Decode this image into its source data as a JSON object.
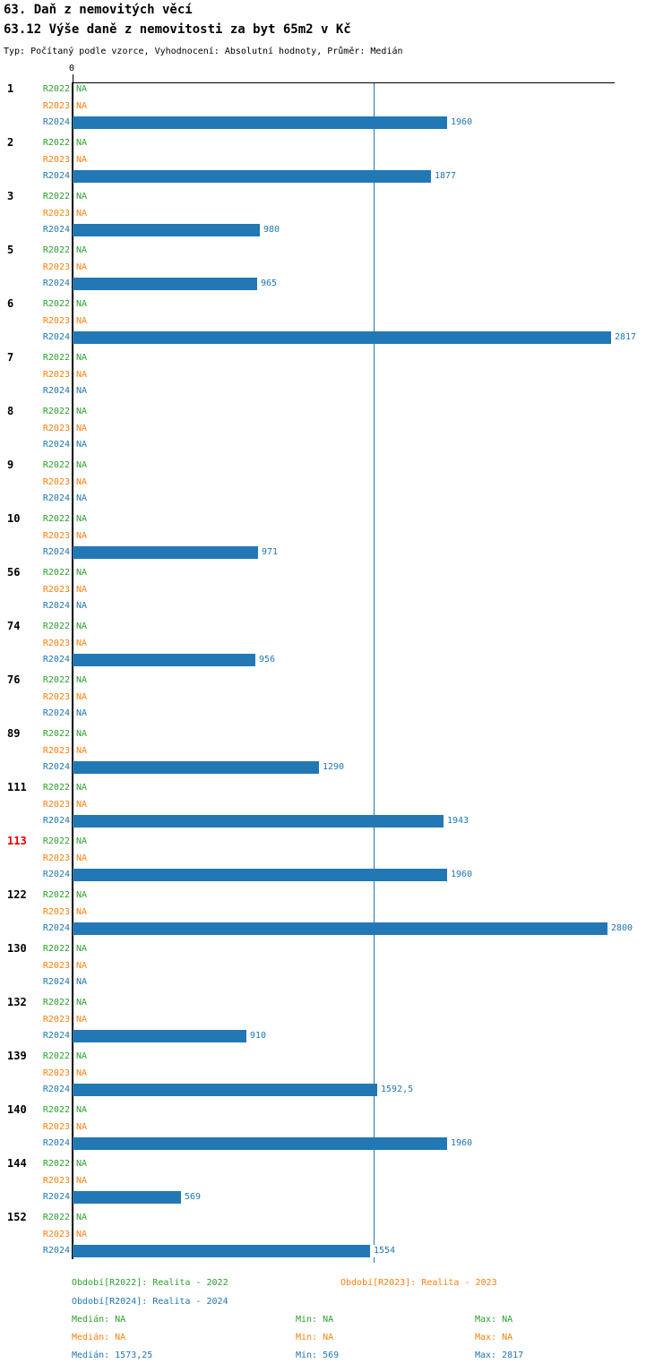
{
  "header": {
    "title": "63. Daň z nemovitých věcí",
    "subtitle": "63.12 Výše daně z nemovitosti za byt 65m2 v Kč",
    "meta": "Typ: Počítaný podle vzorce, Vyhodnocení: Absolutní hodnoty, Průměr: Medián"
  },
  "chart_data": {
    "type": "bar",
    "orientation": "horizontal",
    "title": "63.12 Výše daně z nemovitosti za byt 65m2 v Kč",
    "xlabel": "",
    "ylabel": "",
    "axis": {
      "zero_label": "0",
      "xlim": [
        0,
        2836
      ],
      "grid": false
    },
    "median_reference_line": 1573.25,
    "series_labels": [
      "R2022",
      "R2023",
      "R2024"
    ],
    "colors": {
      "R2022": "#2CA02C",
      "R2023": "#FF7F0E",
      "R2024": "#1F77B4",
      "bar": "#2278B5",
      "highlight_group": "#E00000",
      "axis": "#000000"
    },
    "na_text": "NA",
    "groups": [
      {
        "id": "1",
        "highlight": false,
        "rows": [
          {
            "series": "R2022",
            "value": null,
            "label": "NA"
          },
          {
            "series": "R2023",
            "value": null,
            "label": "NA"
          },
          {
            "series": "R2024",
            "value": 1960,
            "label": "1960"
          }
        ]
      },
      {
        "id": "2",
        "highlight": false,
        "rows": [
          {
            "series": "R2022",
            "value": null,
            "label": "NA"
          },
          {
            "series": "R2023",
            "value": null,
            "label": "NA"
          },
          {
            "series": "R2024",
            "value": 1877,
            "label": "1877"
          }
        ]
      },
      {
        "id": "3",
        "highlight": false,
        "rows": [
          {
            "series": "R2022",
            "value": null,
            "label": "NA"
          },
          {
            "series": "R2023",
            "value": null,
            "label": "NA"
          },
          {
            "series": "R2024",
            "value": 980,
            "label": "980"
          }
        ]
      },
      {
        "id": "5",
        "highlight": false,
        "rows": [
          {
            "series": "R2022",
            "value": null,
            "label": "NA"
          },
          {
            "series": "R2023",
            "value": null,
            "label": "NA"
          },
          {
            "series": "R2024",
            "value": 965,
            "label": "965"
          }
        ]
      },
      {
        "id": "6",
        "highlight": false,
        "rows": [
          {
            "series": "R2022",
            "value": null,
            "label": "NA"
          },
          {
            "series": "R2023",
            "value": null,
            "label": "NA"
          },
          {
            "series": "R2024",
            "value": 2817,
            "label": "2817"
          }
        ]
      },
      {
        "id": "7",
        "highlight": false,
        "rows": [
          {
            "series": "R2022",
            "value": null,
            "label": "NA"
          },
          {
            "series": "R2023",
            "value": null,
            "label": "NA"
          },
          {
            "series": "R2024",
            "value": null,
            "label": "NA"
          }
        ]
      },
      {
        "id": "8",
        "highlight": false,
        "rows": [
          {
            "series": "R2022",
            "value": null,
            "label": "NA"
          },
          {
            "series": "R2023",
            "value": null,
            "label": "NA"
          },
          {
            "series": "R2024",
            "value": null,
            "label": "NA"
          }
        ]
      },
      {
        "id": "9",
        "highlight": false,
        "rows": [
          {
            "series": "R2022",
            "value": null,
            "label": "NA"
          },
          {
            "series": "R2023",
            "value": null,
            "label": "NA"
          },
          {
            "series": "R2024",
            "value": null,
            "label": "NA"
          }
        ]
      },
      {
        "id": "10",
        "highlight": false,
        "rows": [
          {
            "series": "R2022",
            "value": null,
            "label": "NA"
          },
          {
            "series": "R2023",
            "value": null,
            "label": "NA"
          },
          {
            "series": "R2024",
            "value": 971,
            "label": "971"
          }
        ]
      },
      {
        "id": "56",
        "highlight": false,
        "rows": [
          {
            "series": "R2022",
            "value": null,
            "label": "NA"
          },
          {
            "series": "R2023",
            "value": null,
            "label": "NA"
          },
          {
            "series": "R2024",
            "value": null,
            "label": "NA"
          }
        ]
      },
      {
        "id": "74",
        "highlight": false,
        "rows": [
          {
            "series": "R2022",
            "value": null,
            "label": "NA"
          },
          {
            "series": "R2023",
            "value": null,
            "label": "NA"
          },
          {
            "series": "R2024",
            "value": 956,
            "label": "956"
          }
        ]
      },
      {
        "id": "76",
        "highlight": false,
        "rows": [
          {
            "series": "R2022",
            "value": null,
            "label": "NA"
          },
          {
            "series": "R2023",
            "value": null,
            "label": "NA"
          },
          {
            "series": "R2024",
            "value": null,
            "label": "NA"
          }
        ]
      },
      {
        "id": "89",
        "highlight": false,
        "rows": [
          {
            "series": "R2022",
            "value": null,
            "label": "NA"
          },
          {
            "series": "R2023",
            "value": null,
            "label": "NA"
          },
          {
            "series": "R2024",
            "value": 1290,
            "label": "1290"
          }
        ]
      },
      {
        "id": "111",
        "highlight": false,
        "rows": [
          {
            "series": "R2022",
            "value": null,
            "label": "NA"
          },
          {
            "series": "R2023",
            "value": null,
            "label": "NA"
          },
          {
            "series": "R2024",
            "value": 1943,
            "label": "1943"
          }
        ]
      },
      {
        "id": "113",
        "highlight": true,
        "rows": [
          {
            "series": "R2022",
            "value": null,
            "label": "NA"
          },
          {
            "series": "R2023",
            "value": null,
            "label": "NA"
          },
          {
            "series": "R2024",
            "value": 1960,
            "label": "1960"
          }
        ]
      },
      {
        "id": "122",
        "highlight": false,
        "rows": [
          {
            "series": "R2022",
            "value": null,
            "label": "NA"
          },
          {
            "series": "R2023",
            "value": null,
            "label": "NA"
          },
          {
            "series": "R2024",
            "value": 2800,
            "label": "2800"
          }
        ]
      },
      {
        "id": "130",
        "highlight": false,
        "rows": [
          {
            "series": "R2022",
            "value": null,
            "label": "NA"
          },
          {
            "series": "R2023",
            "value": null,
            "label": "NA"
          },
          {
            "series": "R2024",
            "value": null,
            "label": "NA"
          }
        ]
      },
      {
        "id": "132",
        "highlight": false,
        "rows": [
          {
            "series": "R2022",
            "value": null,
            "label": "NA"
          },
          {
            "series": "R2023",
            "value": null,
            "label": "NA"
          },
          {
            "series": "R2024",
            "value": 910,
            "label": "910"
          }
        ]
      },
      {
        "id": "139",
        "highlight": false,
        "rows": [
          {
            "series": "R2022",
            "value": null,
            "label": "NA"
          },
          {
            "series": "R2023",
            "value": null,
            "label": "NA"
          },
          {
            "series": "R2024",
            "value": 1592.5,
            "label": "1592,5"
          }
        ]
      },
      {
        "id": "140",
        "highlight": false,
        "rows": [
          {
            "series": "R2022",
            "value": null,
            "label": "NA"
          },
          {
            "series": "R2023",
            "value": null,
            "label": "NA"
          },
          {
            "series": "R2024",
            "value": 1960,
            "label": "1960"
          }
        ]
      },
      {
        "id": "144",
        "highlight": false,
        "rows": [
          {
            "series": "R2022",
            "value": null,
            "label": "NA"
          },
          {
            "series": "R2023",
            "value": null,
            "label": "NA"
          },
          {
            "series": "R2024",
            "value": 569,
            "label": "569"
          }
        ]
      },
      {
        "id": "152",
        "highlight": false,
        "rows": [
          {
            "series": "R2022",
            "value": null,
            "label": "NA"
          },
          {
            "series": "R2023",
            "value": null,
            "label": "NA"
          },
          {
            "series": "R2024",
            "value": 1554,
            "label": "1554"
          }
        ]
      }
    ],
    "legend": {
      "position": "bottom",
      "periods": [
        {
          "series": "R2022",
          "label": "Období[R2022]: Realita - 2022",
          "color": "#2CA02C"
        },
        {
          "series": "R2023",
          "label": "Období[R2023]: Realita - 2023",
          "color": "#FF7F0E"
        },
        {
          "series": "R2024",
          "label": "Období[R2024]: Realita - 2024",
          "color": "#1F77B4"
        }
      ]
    },
    "stats": [
      {
        "series": "R2022",
        "median": "Medián: NA",
        "min": "Min: NA",
        "max": "Max: NA",
        "color": "#2CA02C"
      },
      {
        "series": "R2023",
        "median": "Medián: NA",
        "min": "Min: NA",
        "max": "Max: NA",
        "color": "#FF7F0E"
      },
      {
        "series": "R2024",
        "median": "Medián: 1573,25",
        "min": "Min: 569",
        "max": "Max: 2817",
        "color": "#1F77B4"
      }
    ]
  }
}
